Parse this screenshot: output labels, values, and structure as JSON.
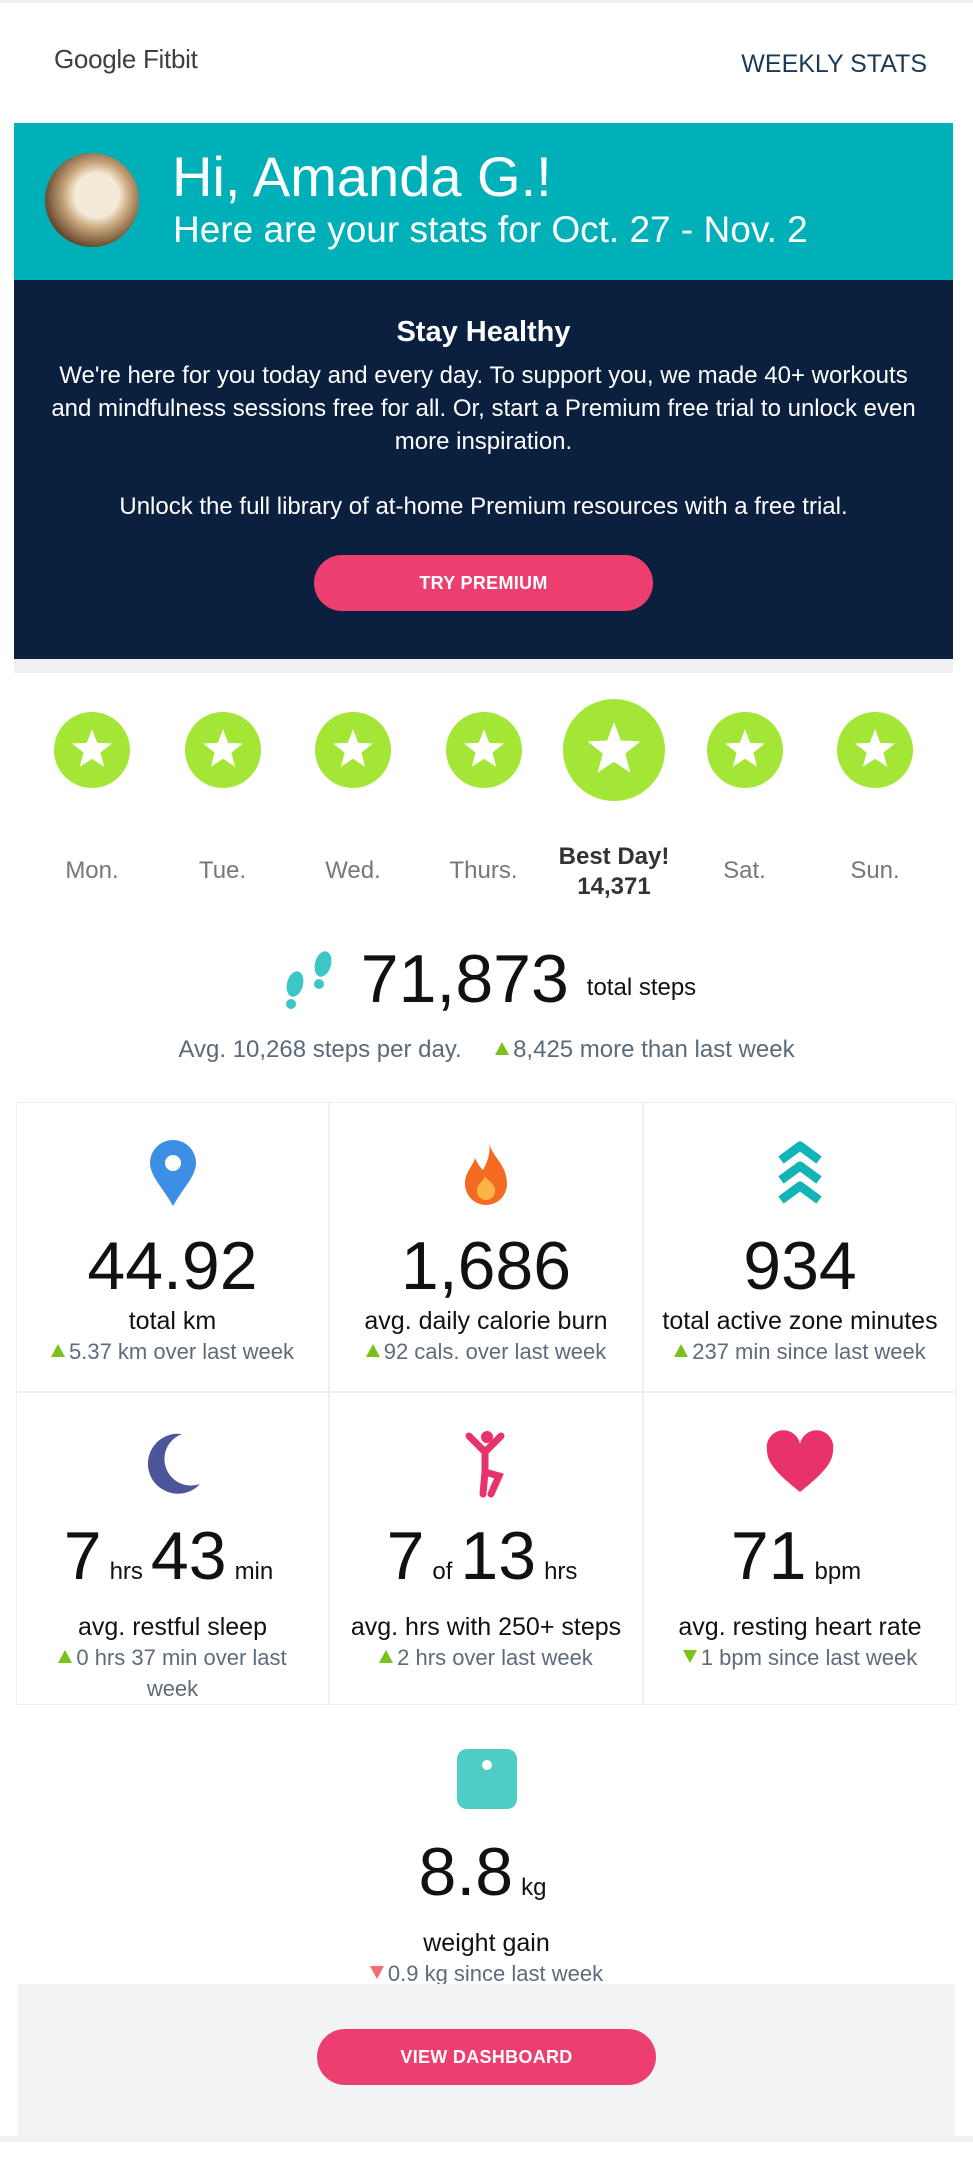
{
  "header": {
    "logo": "Google Fitbit",
    "link": "WEEKLY STATS"
  },
  "hero": {
    "greeting": "Hi, Amanda G.!",
    "subtitle": "Here are your stats for Oct. 27 - Nov. 2"
  },
  "promo": {
    "title": "Stay Healthy",
    "paragraphs": [
      "We're here for you today and every day. To support you, we made 40+ workouts and mindfulness sessions free for all. Or, start a Premium free trial to unlock even more inspiration.",
      "Unlock the full library of at-home Premium resources with a free trial."
    ],
    "button": "TRY PREMIUM"
  },
  "days": [
    {
      "label": "Mon."
    },
    {
      "label": "Tue."
    },
    {
      "label": "Wed."
    },
    {
      "label": "Thurs."
    },
    {
      "label": "Best Day!",
      "value": "14,371"
    },
    {
      "label": "Sat."
    },
    {
      "label": "Sun."
    }
  ],
  "steps": {
    "value": "71,873",
    "unit": "total steps",
    "average": "Avg. 10,268 steps per day.",
    "change": "8,425 more than last week",
    "trend": "up"
  },
  "stats": [
    {
      "value_parts": [
        "44.92"
      ],
      "label": "total km",
      "change": "5.37 km over last week",
      "trend": "up"
    },
    {
      "value_parts": [
        "1,686"
      ],
      "label": "avg. daily calorie burn",
      "change": "92 cals. over last week",
      "trend": "up"
    },
    {
      "value_parts": [
        "934"
      ],
      "label": "total active zone minutes",
      "change": "237 min since last week",
      "trend": "up"
    },
    {
      "value_parts": [
        "7",
        "hrs",
        "43",
        "min"
      ],
      "label": "avg. restful sleep",
      "change": "0 hrs 37 min over last week",
      "trend": "up"
    },
    {
      "value_parts": [
        "7",
        "of",
        "13",
        "hrs"
      ],
      "label": "avg. hrs with 250+ steps",
      "change": "2 hrs over last week",
      "trend": "up"
    },
    {
      "value_parts": [
        "71",
        "bpm"
      ],
      "label": "avg. resting heart rate",
      "change": "1 bpm since last week",
      "trend": "down"
    }
  ],
  "weight": {
    "value_parts": [
      "8.8",
      "kg"
    ],
    "label": "weight gain",
    "change": "0.9 kg since last week",
    "trend": "down-bad"
  },
  "footer": {
    "button": "VIEW DASHBOARD"
  }
}
